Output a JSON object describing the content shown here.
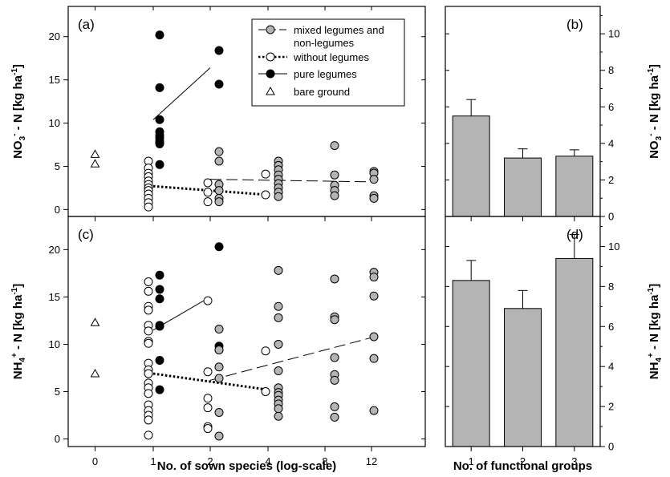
{
  "chart_data": [
    {
      "id": "a",
      "type": "scatter",
      "panel_label": "(a)",
      "ylabel": "NO3- - N [kg ha-1]",
      "ylim": [
        -0.8,
        23.5
      ],
      "yticks": [
        0,
        5,
        10,
        15,
        20
      ],
      "xlabel": "",
      "xticks": [
        "0",
        "1",
        "2",
        "4",
        "8",
        "12"
      ],
      "legend": {
        "position": "top-right",
        "entries": [
          {
            "series": "mixed",
            "lines": [
              "mixed legumes and",
              "non-legumes"
            ]
          },
          {
            "series": "without",
            "lines": [
              "without legumes"
            ]
          },
          {
            "series": "pure",
            "lines": [
              "pure legumes"
            ]
          },
          {
            "series": "bare",
            "lines": [
              "bare ground"
            ]
          }
        ]
      },
      "series": [
        {
          "key": "bare",
          "name": "bare ground",
          "x": [
            0,
            0
          ],
          "y": [
            6.4,
            5.3
          ]
        },
        {
          "key": "without",
          "name": "without legumes",
          "x": [
            1,
            1,
            1,
            1,
            1,
            1,
            1,
            1,
            1,
            1,
            1,
            1,
            2,
            2,
            2,
            4,
            4
          ],
          "y": [
            5.6,
            4.8,
            4.2,
            3.8,
            3.3,
            2.9,
            2.5,
            2.2,
            1.8,
            1.3,
            0.8,
            0.3,
            3.1,
            2.0,
            0.9,
            4.1,
            1.7
          ]
        },
        {
          "key": "pure",
          "name": "pure legumes",
          "x": [
            1,
            1,
            1,
            1,
            1,
            1,
            1,
            1,
            1,
            2,
            2
          ],
          "y": [
            20.2,
            14.1,
            10.4,
            9.0,
            8.6,
            8.3,
            7.6,
            5.2,
            7.9,
            18.4,
            14.5
          ]
        },
        {
          "key": "mixed",
          "name": "mixed legumes and non-legumes",
          "x": [
            2,
            2,
            2,
            2,
            2,
            2,
            4,
            4,
            4,
            4,
            4,
            4,
            4,
            4,
            4,
            8,
            8,
            8,
            8,
            8,
            12,
            12,
            12,
            12,
            12
          ],
          "y": [
            6.7,
            5.6,
            2.9,
            2.2,
            1.3,
            0.9,
            5.6,
            5.1,
            4.6,
            4.0,
            3.5,
            3.0,
            2.5,
            2.0,
            1.5,
            7.4,
            4.0,
            2.8,
            2.2,
            1.6,
            4.4,
            4.2,
            3.5,
            1.6,
            1.3
          ]
        }
      ],
      "fits": [
        {
          "series": "pure",
          "style": "solid",
          "x": [
            1,
            2
          ],
          "y": [
            10.4,
            16.4
          ]
        },
        {
          "series": "without",
          "style": "dotted",
          "x": [
            1,
            4
          ],
          "y": [
            2.7,
            1.7
          ]
        },
        {
          "series": "mixed",
          "style": "dashed",
          "x": [
            2,
            12
          ],
          "y": [
            3.5,
            3.2
          ]
        }
      ]
    },
    {
      "id": "b",
      "type": "bar",
      "panel_label": "(b)",
      "ylabel": "NO3- - N [kg ha-1]",
      "ylim": [
        0,
        11.5
      ],
      "yticks": [
        0,
        2,
        4,
        6,
        8,
        10
      ],
      "xlabel": "",
      "categories": [
        "1",
        "2",
        "3"
      ],
      "values": [
        5.5,
        3.2,
        3.3
      ],
      "errors": [
        0.9,
        0.5,
        0.35
      ]
    },
    {
      "id": "c",
      "type": "scatter",
      "panel_label": "(c)",
      "ylabel": "NH4+ - N [kg ha-1]",
      "ylim": [
        -0.8,
        23.5
      ],
      "yticks": [
        0,
        5,
        10,
        15,
        20
      ],
      "xlabel": "No. of sown species (log-scale)",
      "xticks": [
        "0",
        "1",
        "2",
        "4",
        "8",
        "12"
      ],
      "series": [
        {
          "key": "bare",
          "name": "bare ground",
          "x": [
            0,
            0
          ],
          "y": [
            12.3,
            6.9
          ]
        },
        {
          "key": "without",
          "name": "without legumes",
          "x": [
            1,
            1,
            1,
            1,
            1,
            1,
            1,
            1,
            1,
            1,
            1,
            1,
            1,
            1,
            1,
            1,
            1,
            1,
            1,
            2,
            2,
            2,
            2,
            2,
            2,
            4,
            4
          ],
          "y": [
            16.6,
            15.6,
            14.0,
            12.0,
            10.3,
            10.1,
            8.0,
            7.3,
            6.9,
            5.9,
            5.4,
            4.8,
            3.6,
            3.0,
            2.5,
            2.0,
            0.4,
            11.4,
            13.6,
            14.6,
            7.1,
            4.3,
            3.3,
            1.3,
            1.1,
            9.3,
            5.0
          ]
        },
        {
          "key": "pure",
          "name": "pure legumes",
          "x": [
            1,
            1,
            1,
            1,
            1,
            1,
            1,
            2,
            2,
            2
          ],
          "y": [
            17.3,
            15.8,
            14.8,
            12.0,
            11.9,
            8.3,
            5.2,
            20.3,
            9.8,
            9.4
          ]
        },
        {
          "key": "mixed",
          "name": "mixed legumes and non-legumes",
          "x": [
            2,
            2,
            2,
            2,
            2,
            2,
            4,
            4,
            4,
            4,
            4,
            4,
            4,
            4,
            4,
            4,
            4,
            4,
            8,
            8,
            8,
            8,
            8,
            8,
            8,
            8,
            12,
            12,
            12,
            12,
            12,
            12
          ],
          "y": [
            11.6,
            9.4,
            7.6,
            6.4,
            2.8,
            0.3,
            17.8,
            14.0,
            12.8,
            10.0,
            7.2,
            5.4,
            4.9,
            4.6,
            4.1,
            3.7,
            3.2,
            2.4,
            16.9,
            12.9,
            12.6,
            8.6,
            6.8,
            6.2,
            3.4,
            2.3,
            17.6,
            17.1,
            15.1,
            10.8,
            8.5,
            3.0
          ]
        }
      ],
      "fits": [
        {
          "series": "pure",
          "style": "solid",
          "x": [
            1,
            2
          ],
          "y": [
            11.5,
            15.0
          ]
        },
        {
          "series": "without",
          "style": "dotted",
          "x": [
            1,
            4
          ],
          "y": [
            6.9,
            5.2
          ]
        },
        {
          "series": "mixed",
          "style": "dashed",
          "x": [
            2,
            12
          ],
          "y": [
            6.2,
            10.7
          ]
        }
      ]
    },
    {
      "id": "d",
      "type": "bar",
      "panel_label": "(d)",
      "ylabel": "NH4+ - N [kg ha-1]",
      "ylim": [
        0,
        11.5
      ],
      "yticks": [
        0,
        2,
        4,
        6,
        8,
        10
      ],
      "xlabel": "No. of functional groups",
      "categories": [
        "1",
        "2",
        "3"
      ],
      "values": [
        8.3,
        6.9,
        9.4
      ],
      "errors": [
        1.0,
        0.9,
        1.2
      ]
    }
  ],
  "colors": {
    "mixed_fill": "#b4b4b4",
    "bar_fill": "#b4b4b4",
    "marker_stroke": "#000000",
    "open_fill": "#ffffff",
    "filled": "#000000"
  }
}
